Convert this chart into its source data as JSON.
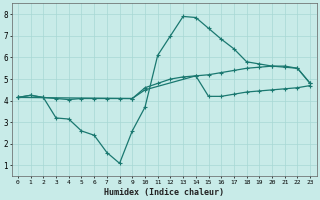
{
  "xlabel": "Humidex (Indice chaleur)",
  "background_color": "#c8ebe8",
  "line_color": "#1a7870",
  "grid_color": "#a8d8d4",
  "xlim": [
    -0.5,
    23.5
  ],
  "ylim": [
    0.5,
    8.5
  ],
  "xticks": [
    0,
    1,
    2,
    3,
    4,
    5,
    6,
    7,
    8,
    9,
    10,
    11,
    12,
    13,
    14,
    15,
    16,
    17,
    18,
    19,
    20,
    21,
    22,
    23
  ],
  "yticks": [
    1,
    2,
    3,
    4,
    5,
    6,
    7,
    8
  ],
  "line1_x": [
    0,
    1,
    2,
    3,
    4,
    5,
    6,
    7,
    8,
    9,
    10,
    11,
    12,
    13,
    14,
    15,
    16,
    17,
    18,
    19,
    20,
    21,
    22,
    23
  ],
  "line1_y": [
    4.15,
    4.25,
    4.15,
    4.1,
    4.05,
    4.1,
    4.1,
    4.1,
    4.1,
    4.1,
    4.6,
    4.8,
    5.0,
    5.1,
    5.15,
    5.2,
    5.3,
    5.4,
    5.5,
    5.55,
    5.6,
    5.6,
    5.5,
    4.8
  ],
  "line2_x": [
    0,
    1,
    2,
    3,
    4,
    5,
    6,
    7,
    8,
    9,
    10,
    11,
    12,
    13,
    14,
    15,
    16,
    17,
    18,
    19,
    20,
    21,
    22,
    23
  ],
  "line2_y": [
    4.15,
    4.25,
    4.15,
    3.2,
    3.15,
    2.6,
    2.4,
    1.6,
    1.1,
    2.6,
    3.7,
    6.1,
    7.0,
    7.9,
    7.85,
    7.35,
    6.85,
    6.4,
    5.8,
    5.7,
    5.6,
    5.55,
    5.5,
    4.8
  ],
  "line3_x": [
    0,
    9,
    10,
    14,
    15,
    16,
    17,
    18,
    19,
    20,
    21,
    22,
    23
  ],
  "line3_y": [
    4.15,
    4.1,
    4.5,
    5.15,
    4.2,
    4.2,
    4.3,
    4.4,
    4.45,
    4.5,
    4.55,
    4.6,
    4.7
  ]
}
